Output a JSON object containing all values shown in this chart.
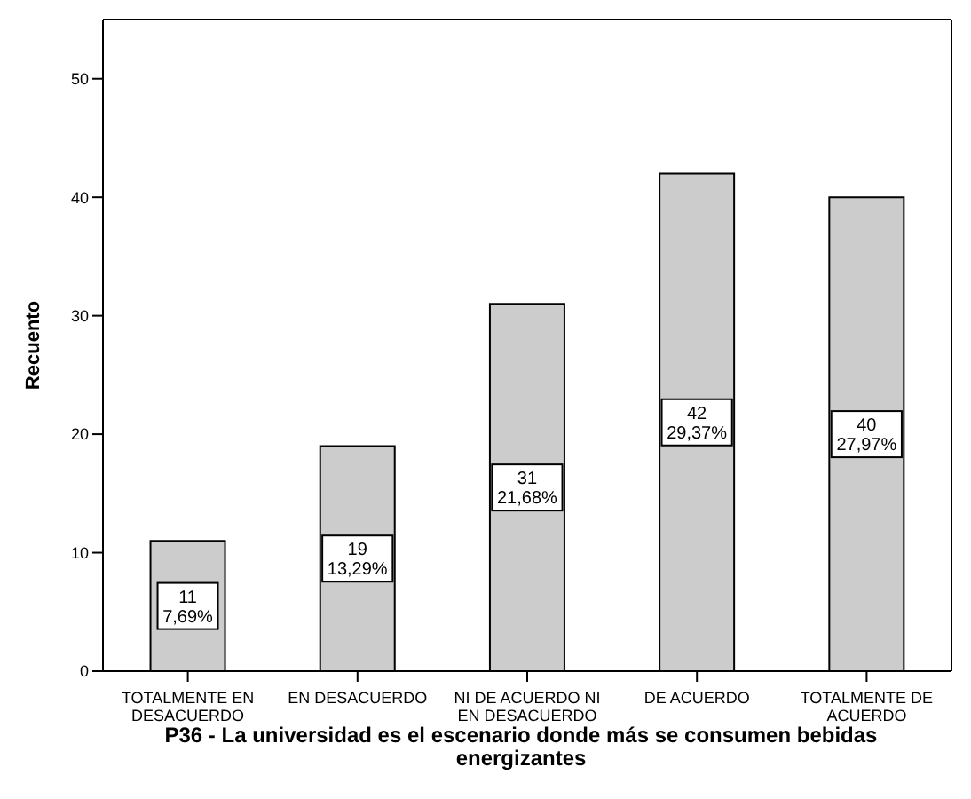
{
  "chart_data": {
    "type": "bar",
    "xlabel": "P36 - La universidad es el escenario donde más se consumen bebidas energizantes",
    "ylabel": "Recuento",
    "categories": [
      "TOTALMENTE EN DESACUERDO",
      "EN DESACUERDO",
      "NI DE ACUERDO NI EN DESACUERDO",
      "DE ACUERDO",
      "TOTALMENTE DE ACUERDO"
    ],
    "values": [
      11,
      19,
      31,
      42,
      40
    ],
    "value_labels": [
      "11\n7,69%",
      "19\n13,29%",
      "31\n21,68%",
      "42\n29,37%",
      "40\n27,97%"
    ],
    "color": "#cccccc",
    "ylim": [
      0,
      55
    ],
    "yticks": [
      0,
      10,
      20,
      30,
      40,
      50
    ],
    "grid": false,
    "legend": false
  }
}
